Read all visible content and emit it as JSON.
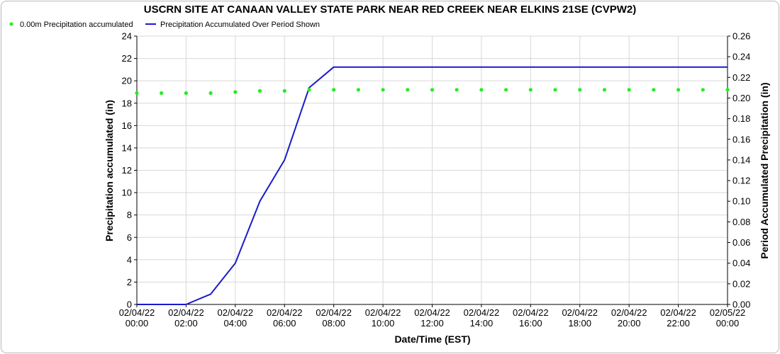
{
  "chart_data": {
    "type": "line",
    "title": "USCRN SITE AT CANAAN VALLEY STATE PARK NEAR RED CREEK NEAR ELKINS 21SE (CVPW2)",
    "xlabel": "Date/Time (EST)",
    "ylabel_left": "Precipitation accumulated (in)",
    "ylabel_right": "Period Accumulated Precipitation (in)",
    "x_ticks": [
      {
        "date": "02/04/22",
        "time": "00:00"
      },
      {
        "date": "02/04/22",
        "time": "02:00"
      },
      {
        "date": "02/04/22",
        "time": "04:00"
      },
      {
        "date": "02/04/22",
        "time": "06:00"
      },
      {
        "date": "02/04/22",
        "time": "08:00"
      },
      {
        "date": "02/04/22",
        "time": "10:00"
      },
      {
        "date": "02/04/22",
        "time": "12:00"
      },
      {
        "date": "02/04/22",
        "time": "14:00"
      },
      {
        "date": "02/04/22",
        "time": "16:00"
      },
      {
        "date": "02/04/22",
        "time": "18:00"
      },
      {
        "date": "02/04/22",
        "time": "20:00"
      },
      {
        "date": "02/04/22",
        "time": "22:00"
      },
      {
        "date": "02/05/22",
        "time": "00:00"
      }
    ],
    "xlim": [
      "02/04/22 00:00",
      "02/05/22 00:00"
    ],
    "y_left_lim": [
      0,
      24
    ],
    "y_left_ticks": [
      "0",
      "2",
      "4",
      "6",
      "8",
      "10",
      "12",
      "14",
      "16",
      "18",
      "20",
      "22",
      "24"
    ],
    "y_right_lim": [
      0,
      0.26
    ],
    "y_right_ticks": [
      "0.00",
      "0.02",
      "0.04",
      "0.06",
      "0.08",
      "0.10",
      "0.12",
      "0.14",
      "0.16",
      "0.18",
      "0.20",
      "0.22",
      "0.24",
      "0.26"
    ],
    "grid": true,
    "legend_position": "top-left",
    "series": [
      {
        "name": "0.00m Precipitation accumulated",
        "type": "scatter",
        "axis": "left",
        "color": "#22ee22",
        "x": [
          "02/04/22 00:00",
          "02/04/22 01:00",
          "02/04/22 02:00",
          "02/04/22 03:00",
          "02/04/22 04:00",
          "02/04/22 05:00",
          "02/04/22 06:00",
          "02/04/22 07:00",
          "02/04/22 08:00",
          "02/04/22 09:00",
          "02/04/22 10:00",
          "02/04/22 11:00",
          "02/04/22 12:00",
          "02/04/22 13:00",
          "02/04/22 14:00",
          "02/04/22 15:00",
          "02/04/22 16:00",
          "02/04/22 17:00",
          "02/04/22 18:00",
          "02/04/22 19:00",
          "02/04/22 20:00",
          "02/04/22 21:00",
          "02/04/22 22:00",
          "02/04/22 23:00",
          "02/05/22 00:00"
        ],
        "values": [
          18.9,
          18.9,
          18.9,
          18.9,
          19.0,
          19.1,
          19.1,
          19.2,
          19.2,
          19.2,
          19.2,
          19.2,
          19.2,
          19.2,
          19.2,
          19.2,
          19.2,
          19.2,
          19.2,
          19.2,
          19.2,
          19.2,
          19.2,
          19.2,
          19.2
        ]
      },
      {
        "name": "Precipitation Accumulated Over Period Shown",
        "type": "line",
        "axis": "right",
        "color": "#1a1acc",
        "x": [
          "02/04/22 00:00",
          "02/04/22 01:00",
          "02/04/22 02:00",
          "02/04/22 03:00",
          "02/04/22 04:00",
          "02/04/22 05:00",
          "02/04/22 06:00",
          "02/04/22 07:00",
          "02/04/22 08:00",
          "02/04/22 09:00",
          "02/04/22 10:00",
          "02/04/22 11:00",
          "02/04/22 12:00",
          "02/04/22 13:00",
          "02/04/22 14:00",
          "02/04/22 15:00",
          "02/04/22 16:00",
          "02/04/22 17:00",
          "02/04/22 18:00",
          "02/04/22 19:00",
          "02/04/22 20:00",
          "02/04/22 21:00",
          "02/04/22 22:00",
          "02/04/22 23:00",
          "02/05/22 00:00"
        ],
        "values": [
          0.0,
          0.0,
          0.0,
          0.01,
          0.04,
          0.1,
          0.14,
          0.21,
          0.23,
          0.23,
          0.23,
          0.23,
          0.23,
          0.23,
          0.23,
          0.23,
          0.23,
          0.23,
          0.23,
          0.23,
          0.23,
          0.23,
          0.23,
          0.23,
          0.23
        ]
      }
    ]
  }
}
